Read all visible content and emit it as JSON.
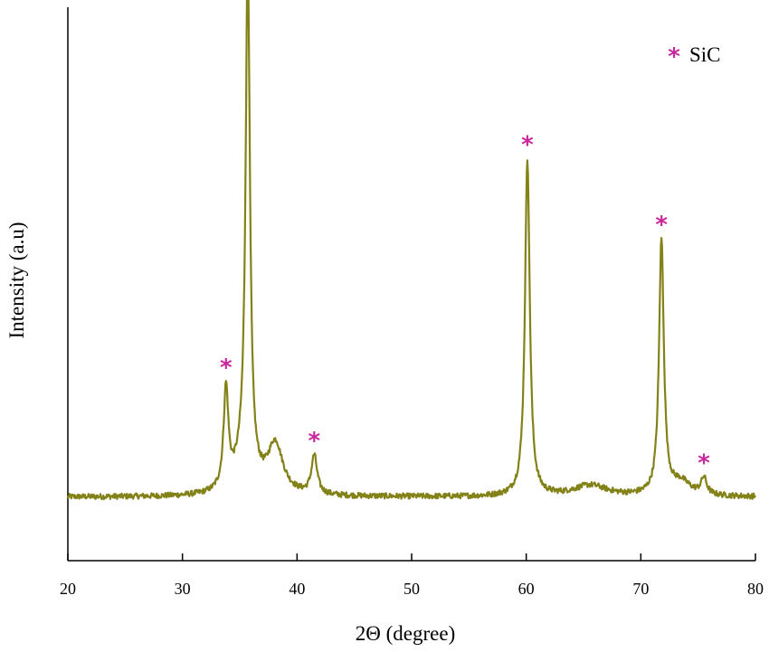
{
  "chart_data": {
    "type": "line",
    "xlabel": "2Θ (degree)",
    "ylabel": "Intensity (a.u)",
    "xlim": [
      20,
      80
    ],
    "ylim": [
      0,
      100
    ],
    "x_ticks": [
      20,
      30,
      40,
      50,
      60,
      70,
      80
    ],
    "grid": false,
    "legend": {
      "position": "top-right",
      "entries": [
        {
          "marker": "*",
          "label": "SiC"
        }
      ]
    },
    "colors": {
      "line": "#828218",
      "marker": "#c8289b",
      "axis": "#000000"
    },
    "baseline": 11.5,
    "noise_amplitude": 0.5,
    "peaks": [
      {
        "x": 33.8,
        "height": 18,
        "width": 0.25,
        "marked": true
      },
      {
        "x": 35.7,
        "height": 92,
        "width": 0.22,
        "marked": true
      },
      {
        "x": 35.4,
        "height": 6,
        "width": 0.9,
        "marked": false
      },
      {
        "x": 38.1,
        "height": 9,
        "width": 0.8,
        "marked": false
      },
      {
        "x": 41.5,
        "height": 7,
        "width": 0.3,
        "marked": true
      },
      {
        "x": 60.1,
        "height": 61,
        "width": 0.25,
        "marked": true
      },
      {
        "x": 65.6,
        "height": 2,
        "width": 1.8,
        "marked": false
      },
      {
        "x": 71.8,
        "height": 46,
        "width": 0.25,
        "marked": true
      },
      {
        "x": 73.5,
        "height": 2.5,
        "width": 1.0,
        "marked": false
      },
      {
        "x": 75.5,
        "height": 3,
        "width": 0.3,
        "marked": true
      }
    ]
  }
}
